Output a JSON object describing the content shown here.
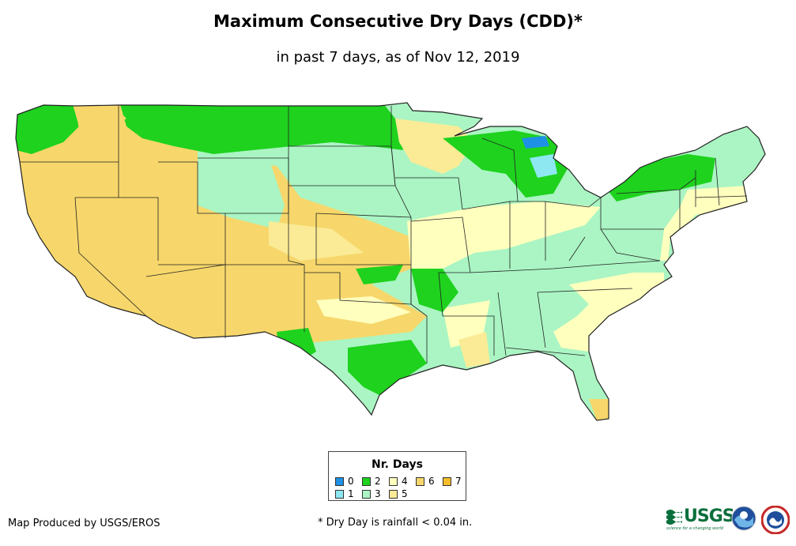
{
  "title": "Maximum Consecutive Dry Days (CDD)*",
  "subtitle": "in past 7 days, as of Nov 12, 2019",
  "legend": {
    "title": "Nr. Days",
    "items": [
      {
        "label": "0",
        "color": "#1e90e6"
      },
      {
        "label": "1",
        "color": "#8ee8f2"
      },
      {
        "label": "2",
        "color": "#1ed21e"
      },
      {
        "label": "3",
        "color": "#aaf5c3"
      },
      {
        "label": "4",
        "color": "#ffffbe"
      },
      {
        "label": "5",
        "color": "#fbeb96"
      },
      {
        "label": "6",
        "color": "#f7d76b"
      },
      {
        "label": "7",
        "color": "#f5be28"
      }
    ]
  },
  "credit": "Map Produced by USGS/EROS",
  "footnote": "* Dry Day is rainfall < 0.04 in.",
  "logos": {
    "usgs": "USGS",
    "usgs_tagline": "science for a changing world"
  },
  "colors": {
    "state_border": "#222222",
    "background": "#ffffff"
  }
}
